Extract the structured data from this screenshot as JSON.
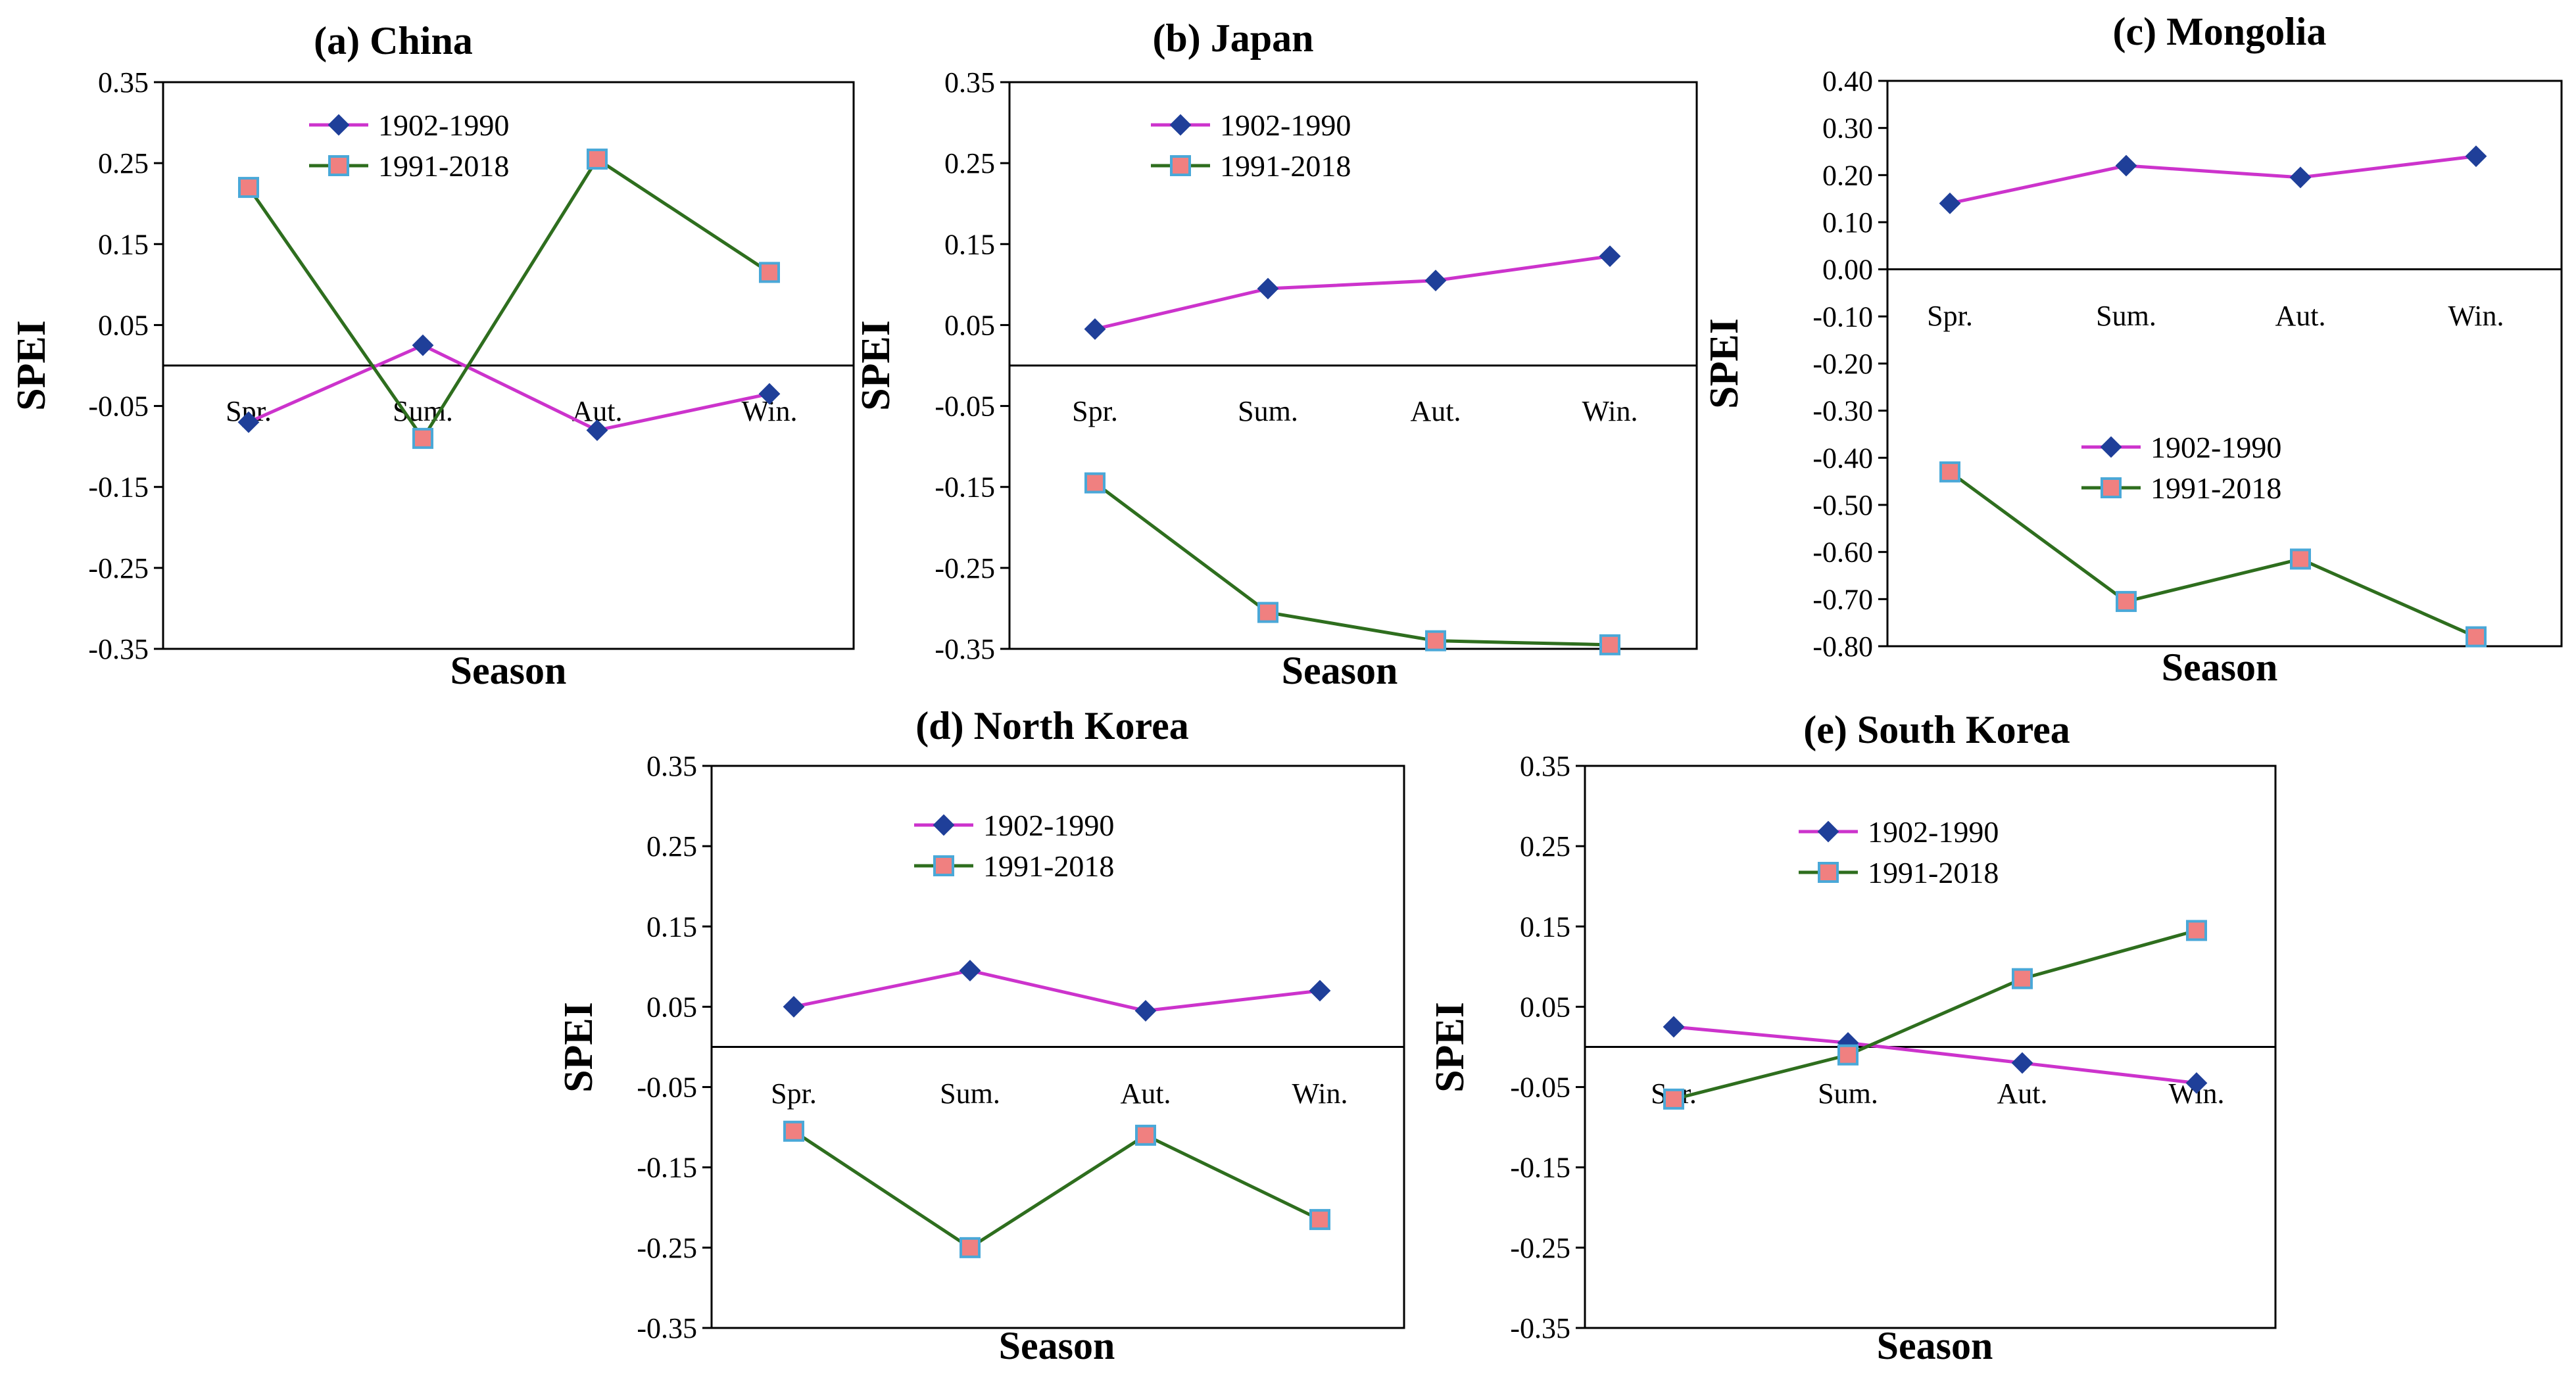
{
  "colors": {
    "series1_line": "#cc33cc",
    "series1_marker": "#1f3f99",
    "series2_line": "#2e6e1e",
    "series2_marker": "#f08080",
    "series2_marker_edge": "#4aa8d8",
    "axis": "#000000",
    "frame": "#000000"
  },
  "icons": {
    "series1_marker": "diamond-icon",
    "series2_marker": "square-icon"
  },
  "chart_data": [
    {
      "type": "line",
      "title": "(a) China",
      "xlabel": "Season",
      "ylabel": "SPEI",
      "categories": [
        "Spr.",
        "Sum.",
        "Aut.",
        "Win."
      ],
      "ylim": [
        -0.35,
        0.35
      ],
      "yticks": [
        0.35,
        0.25,
        0.15,
        0.05,
        -0.05,
        -0.15,
        -0.25,
        -0.35
      ],
      "ytick_labels": [
        "0.35",
        "0.25",
        "0.15",
        "0.05",
        "-0.05",
        "-0.15",
        "-0.25",
        "-0.35"
      ],
      "legend_position": "top-left",
      "series": [
        {
          "name": "1902-1990",
          "values": [
            -0.07,
            0.025,
            -0.08,
            -0.035
          ]
        },
        {
          "name": "1991-2018",
          "values": [
            0.22,
            -0.09,
            0.255,
            0.115
          ]
        }
      ]
    },
    {
      "type": "line",
      "title": "(b) Japan",
      "xlabel": "Season",
      "ylabel": "SPEI",
      "categories": [
        "Spr.",
        "Sum.",
        "Aut.",
        "Win."
      ],
      "ylim": [
        -0.35,
        0.35
      ],
      "yticks": [
        0.35,
        0.25,
        0.15,
        0.05,
        -0.05,
        -0.15,
        -0.25,
        -0.35
      ],
      "ytick_labels": [
        "0.35",
        "0.25",
        "0.15",
        "0.05",
        "-0.05",
        "-0.15",
        "-0.25",
        "-0.35"
      ],
      "legend_position": "top-left",
      "series": [
        {
          "name": "1902-1990",
          "values": [
            0.045,
            0.095,
            0.105,
            0.135
          ]
        },
        {
          "name": "1991-2018",
          "values": [
            -0.145,
            -0.305,
            -0.34,
            -0.345
          ]
        }
      ]
    },
    {
      "type": "line",
      "title": "(c) Mongolia",
      "xlabel": "Season",
      "ylabel": "SPEI",
      "categories": [
        "Spr.",
        "Sum.",
        "Aut.",
        "Win."
      ],
      "ylim": [
        -0.8,
        0.4
      ],
      "yticks": [
        0.4,
        0.3,
        0.2,
        0.1,
        0.0,
        -0.1,
        -0.2,
        -0.3,
        -0.4,
        -0.5,
        -0.6,
        -0.7,
        -0.8
      ],
      "ytick_labels": [
        "0.40",
        "0.30",
        "0.20",
        "0.10",
        "0.00",
        "-0.10",
        "-0.20",
        "-0.30",
        "-0.40",
        "-0.50",
        "-0.60",
        "-0.70",
        "-0.80"
      ],
      "legend_position": "middle",
      "series": [
        {
          "name": "1902-1990",
          "values": [
            0.14,
            0.22,
            0.195,
            0.24
          ]
        },
        {
          "name": "1991-2018",
          "values": [
            -0.43,
            -0.705,
            -0.615,
            -0.78
          ]
        }
      ]
    },
    {
      "type": "line",
      "title": "(d) North Korea",
      "xlabel": "Season",
      "ylabel": "SPEI",
      "categories": [
        "Spr.",
        "Sum.",
        "Aut.",
        "Win."
      ],
      "ylim": [
        -0.35,
        0.35
      ],
      "yticks": [
        0.35,
        0.25,
        0.15,
        0.05,
        -0.05,
        -0.15,
        -0.25,
        -0.35
      ],
      "ytick_labels": [
        "0.35",
        "0.25",
        "0.15",
        "0.05",
        "-0.05",
        "-0.15",
        "-0.25",
        "-0.35"
      ],
      "legend_position": "top-center",
      "series": [
        {
          "name": "1902-1990",
          "values": [
            0.05,
            0.095,
            0.045,
            0.07
          ]
        },
        {
          "name": "1991-2018",
          "values": [
            -0.105,
            -0.25,
            -0.11,
            -0.215
          ]
        }
      ]
    },
    {
      "type": "line",
      "title": "(e) South Korea",
      "xlabel": "Season",
      "ylabel": "SPEI",
      "categories": [
        "Spr.",
        "Sum.",
        "Aut.",
        "Win."
      ],
      "ylim": [
        -0.35,
        0.35
      ],
      "yticks": [
        0.35,
        0.25,
        0.15,
        0.05,
        -0.05,
        -0.15,
        -0.25,
        -0.35
      ],
      "ytick_labels": [
        "0.35",
        "0.25",
        "0.15",
        "0.05",
        "-0.05",
        "-0.15",
        "-0.25",
        "-0.35"
      ],
      "legend_position": "top-left",
      "series": [
        {
          "name": "1902-1990",
          "values": [
            0.025,
            0.005,
            -0.02,
            -0.045
          ]
        },
        {
          "name": "1991-2018",
          "values": [
            -0.065,
            -0.01,
            0.085,
            0.145
          ]
        }
      ]
    }
  ]
}
